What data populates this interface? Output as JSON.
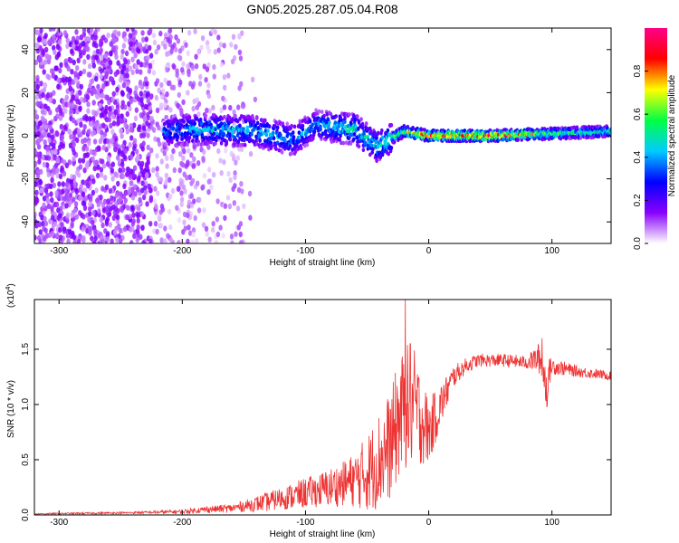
{
  "figure": {
    "title": "GN05.2025.287.05.04.R08"
  },
  "chart_data": [
    {
      "type": "heatmap",
      "xlabel": "Height of straight line (km)",
      "ylabel": "Frequency (Hz)",
      "xlim": [
        -320,
        148
      ],
      "ylim": [
        -50,
        50
      ],
      "xticks": [
        -300,
        -200,
        -100,
        0,
        100
      ],
      "yticks": [
        -40,
        -20,
        0,
        20,
        40
      ],
      "colorbar": {
        "label": "Normalized spectral amplitude",
        "range": [
          0,
          1
        ],
        "ticks": [
          "0.0",
          "0.2",
          "0.4",
          "0.6",
          "0.8"
        ],
        "colors": [
          "#ffffff",
          "#8800ff",
          "#0000ff",
          "#00ccff",
          "#00ff44",
          "#ffff00",
          "#ff0000",
          "#ff0088"
        ]
      },
      "signal_band": [
        {
          "x": -215,
          "freq": 2,
          "amp": 0.35
        },
        {
          "x": -180,
          "freq": 3,
          "amp": 0.45
        },
        {
          "x": -140,
          "freq": 2,
          "amp": 0.45
        },
        {
          "x": -110,
          "freq": -2,
          "amp": 0.4
        },
        {
          "x": -92,
          "freq": 5,
          "amp": 0.4
        },
        {
          "x": -60,
          "freq": 3,
          "amp": 0.5
        },
        {
          "x": -42,
          "freq": -5,
          "amp": 0.45
        },
        {
          "x": -20,
          "freq": 2,
          "amp": 0.7
        },
        {
          "x": 0,
          "freq": 0,
          "amp": 0.85
        },
        {
          "x": 50,
          "freq": 0,
          "amp": 0.9
        },
        {
          "x": 100,
          "freq": 1,
          "amp": 0.6
        },
        {
          "x": 148,
          "freq": 2,
          "amp": 0.5
        }
      ]
    },
    {
      "type": "line",
      "xlabel": "Height of straight line (km)",
      "ylabel": "SNR (10 * v/v)",
      "y_scale_label": "(x10",
      "y_scale_exp": "4",
      "y_scale_close": ")",
      "xlim": [
        -320,
        148
      ],
      "ylim": [
        0,
        1.95
      ],
      "xticks": [
        -300,
        -200,
        -100,
        0,
        100
      ],
      "yticks": [
        0.0,
        0.5,
        1.0,
        1.5
      ],
      "ytick_labels": [
        "0.0",
        "0.5",
        "1.0",
        "1.5"
      ],
      "color": "#ee3333",
      "x": [
        -320,
        -280,
        -240,
        -200,
        -180,
        -160,
        -150,
        -140,
        -130,
        -120,
        -110,
        -100,
        -90,
        -80,
        -70,
        -60,
        -50,
        -40,
        -30,
        -25,
        -20,
        -15,
        -10,
        -5,
        0,
        10,
        20,
        30,
        40,
        60,
        80,
        90,
        95,
        100,
        120,
        148
      ],
      "y": [
        0.01,
        0.015,
        0.02,
        0.03,
        0.05,
        0.06,
        0.08,
        0.1,
        0.12,
        0.15,
        0.17,
        0.2,
        0.22,
        0.25,
        0.28,
        0.32,
        0.38,
        0.5,
        0.65,
        0.85,
        0.95,
        1.0,
        0.95,
        0.85,
        0.75,
        1.0,
        1.25,
        1.35,
        1.4,
        1.4,
        1.38,
        1.42,
        1.2,
        1.35,
        1.3,
        1.26
      ],
      "jitter": [
        0.005,
        0.008,
        0.01,
        0.02,
        0.03,
        0.04,
        0.05,
        0.07,
        0.09,
        0.1,
        0.12,
        0.14,
        0.15,
        0.18,
        0.2,
        0.25,
        0.35,
        0.45,
        0.5,
        0.55,
        0.55,
        0.6,
        0.5,
        0.4,
        0.3,
        0.2,
        0.1,
        0.07,
        0.06,
        0.06,
        0.06,
        0.15,
        0.2,
        0.08,
        0.05,
        0.04
      ],
      "spikes": [
        {
          "x": -19,
          "y": 1.95
        },
        {
          "x": -15,
          "y": 1.55
        },
        {
          "x": 92,
          "y": 1.6
        },
        {
          "x": 96,
          "y": 0.98
        }
      ]
    }
  ]
}
